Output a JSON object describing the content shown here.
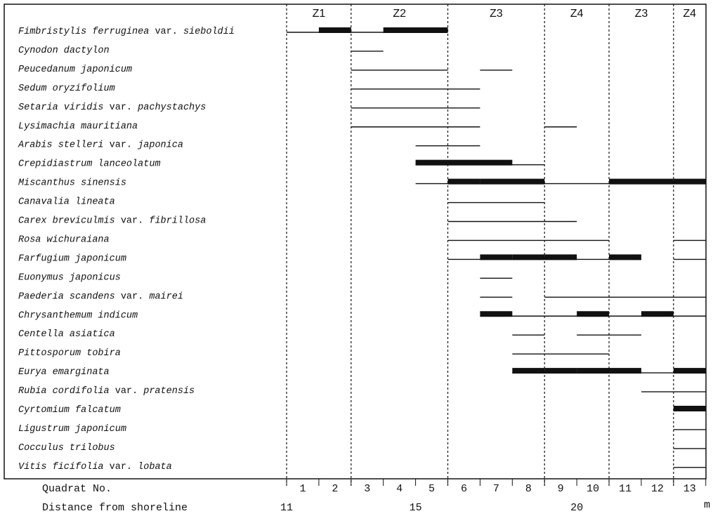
{
  "chart_data": {
    "type": "range-bar",
    "x_axis": {
      "label": "Quadrat No.",
      "ticks": [
        "1",
        "2",
        "3",
        "4",
        "5",
        "6",
        "7",
        "8",
        "9",
        "10",
        "11",
        "12",
        "13"
      ],
      "range": [
        0,
        13
      ]
    },
    "distance_axis": {
      "label": "Distance from shoreline",
      "ticks": [
        {
          "value": "11",
          "at_quadrat_boundary": 0
        },
        {
          "value": "15",
          "at_quadrat_boundary": 4
        },
        {
          "value": "20",
          "at_quadrat_boundary": 9
        }
      ],
      "unit": "m"
    },
    "zones": [
      {
        "label": "Z1",
        "start": 0,
        "end": 2
      },
      {
        "label": "Z2",
        "start": 2,
        "end": 5
      },
      {
        "label": "Z3",
        "start": 5,
        "end": 8
      },
      {
        "label": "Z4",
        "start": 8,
        "end": 10
      },
      {
        "label": "Z3",
        "start": 10,
        "end": 12
      },
      {
        "label": "Z4",
        "start": 12,
        "end": 13
      }
    ],
    "species": [
      {
        "segs": [
          {
            "t": "Fimbristylis ferruginea",
            "i": true
          },
          {
            "t": " var. ",
            "i": false
          },
          {
            "t": "sieboldii",
            "i": true
          }
        ],
        "lines": [
          [
            0,
            5
          ]
        ],
        "bars": [
          [
            1,
            2
          ],
          [
            3,
            5
          ]
        ]
      },
      {
        "segs": [
          {
            "t": "Cynodon dactylon",
            "i": true
          }
        ],
        "lines": [
          [
            2,
            3
          ]
        ],
        "bars": []
      },
      {
        "segs": [
          {
            "t": "Peucedanum japonicum",
            "i": true
          }
        ],
        "lines": [
          [
            2,
            5
          ],
          [
            6,
            7
          ]
        ],
        "bars": []
      },
      {
        "segs": [
          {
            "t": "Sedum oryzifolium",
            "i": true
          }
        ],
        "lines": [
          [
            2,
            6
          ]
        ],
        "bars": []
      },
      {
        "segs": [
          {
            "t": "Setaria viridis",
            "i": true
          },
          {
            "t": " var. ",
            "i": false
          },
          {
            "t": "pachystachys",
            "i": true
          }
        ],
        "lines": [
          [
            2,
            6
          ]
        ],
        "bars": []
      },
      {
        "segs": [
          {
            "t": "Lysimachia mauritiana",
            "i": true
          }
        ],
        "lines": [
          [
            2,
            6
          ],
          [
            8,
            9
          ]
        ],
        "bars": []
      },
      {
        "segs": [
          {
            "t": "Arabis stelleri",
            "i": true
          },
          {
            "t": " var. ",
            "i": false
          },
          {
            "t": "japonica",
            "i": true
          }
        ],
        "lines": [
          [
            4,
            6
          ]
        ],
        "bars": []
      },
      {
        "segs": [
          {
            "t": "Crepidiastrum lanceolatum",
            "i": true
          }
        ],
        "lines": [
          [
            4,
            8
          ]
        ],
        "bars": [
          [
            4,
            7
          ]
        ]
      },
      {
        "segs": [
          {
            "t": "Miscanthus sinensis",
            "i": true
          }
        ],
        "lines": [
          [
            4,
            13
          ]
        ],
        "bars": [
          [
            5,
            6
          ],
          [
            6,
            8
          ],
          [
            10,
            12
          ],
          [
            12,
            13
          ]
        ]
      },
      {
        "segs": [
          {
            "t": "Canavalia lineata",
            "i": true
          }
        ],
        "lines": [
          [
            5,
            8
          ]
        ],
        "bars": []
      },
      {
        "segs": [
          {
            "t": "Carex breviculmis",
            "i": true
          },
          {
            "t": " var. ",
            "i": false
          },
          {
            "t": "fibrillosa",
            "i": true
          }
        ],
        "lines": [
          [
            5,
            9
          ]
        ],
        "bars": []
      },
      {
        "segs": [
          {
            "t": "Rosa wichuraiana",
            "i": true
          }
        ],
        "lines": [
          [
            5,
            10
          ],
          [
            12,
            13
          ]
        ],
        "bars": []
      },
      {
        "segs": [
          {
            "t": "Farfugium japonicum",
            "i": true
          }
        ],
        "lines": [
          [
            5,
            11
          ],
          [
            12,
            13
          ]
        ],
        "bars": [
          [
            6,
            7
          ],
          [
            7,
            8
          ],
          [
            8,
            9
          ],
          [
            10,
            11
          ]
        ]
      },
      {
        "segs": [
          {
            "t": "Euonymus japonicus",
            "i": true
          }
        ],
        "lines": [
          [
            6,
            7
          ]
        ],
        "bars": []
      },
      {
        "segs": [
          {
            "t": "Paederia scandens",
            "i": true
          },
          {
            "t": " var. ",
            "i": false
          },
          {
            "t": "mairei",
            "i": true
          }
        ],
        "lines": [
          [
            6,
            7
          ],
          [
            8,
            13
          ]
        ],
        "bars": []
      },
      {
        "segs": [
          {
            "t": "Chrysanthemum indicum",
            "i": true
          }
        ],
        "lines": [
          [
            6,
            13
          ]
        ],
        "bars": [
          [
            6,
            7
          ],
          [
            9,
            10
          ],
          [
            11,
            12
          ]
        ]
      },
      {
        "segs": [
          {
            "t": "Centella asiatica",
            "i": true
          }
        ],
        "lines": [
          [
            7,
            8
          ],
          [
            9,
            11
          ]
        ],
        "bars": []
      },
      {
        "segs": [
          {
            "t": "Pittosporum tobira",
            "i": true
          }
        ],
        "lines": [
          [
            7,
            10
          ]
        ],
        "bars": []
      },
      {
        "segs": [
          {
            "t": "Eurya emarginata",
            "i": true
          }
        ],
        "lines": [
          [
            7,
            13
          ]
        ],
        "bars": [
          [
            7,
            8
          ],
          [
            8,
            9
          ],
          [
            9,
            10
          ],
          [
            10,
            11
          ],
          [
            12,
            13
          ]
        ]
      },
      {
        "segs": [
          {
            "t": "Rubia cordifolia",
            "i": true
          },
          {
            "t": " var. ",
            "i": false
          },
          {
            "t": "pratensis",
            "i": true
          }
        ],
        "lines": [
          [
            11,
            13
          ]
        ],
        "bars": []
      },
      {
        "segs": [
          {
            "t": "Cyrtomium falcatum",
            "i": true
          }
        ],
        "lines": [
          [
            12,
            13
          ]
        ],
        "bars": [
          [
            12,
            13
          ]
        ]
      },
      {
        "segs": [
          {
            "t": "Ligustrum japonicum",
            "i": true
          }
        ],
        "lines": [
          [
            12,
            13
          ]
        ],
        "bars": []
      },
      {
        "segs": [
          {
            "t": "Cocculus trilobus",
            "i": true
          }
        ],
        "lines": [
          [
            12,
            13
          ]
        ],
        "bars": []
      },
      {
        "segs": [
          {
            "t": "Vitis ficifolia",
            "i": true
          },
          {
            "t": " var. ",
            "i": false
          },
          {
            "t": "lobata",
            "i": true
          }
        ],
        "lines": [
          [
            12,
            13
          ]
        ],
        "bars": []
      }
    ]
  }
}
